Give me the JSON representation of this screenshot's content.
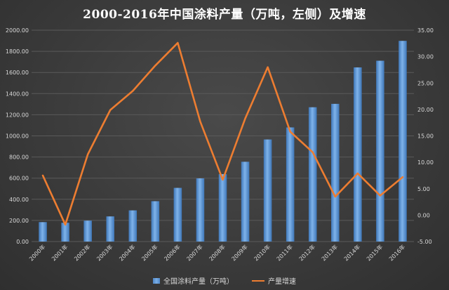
{
  "title": "2000-2016年中国涂料产量（万吨，左侧）及增速",
  "legend": {
    "bar_label": "全国涂料产量（万吨）",
    "line_label": "产量增速"
  },
  "colors": {
    "bar": "#5b9bd5",
    "line": "#ed7d31",
    "axis_text": "#d9d9d9",
    "grid": "#5a5a5a"
  },
  "chart_data": {
    "type": "bar+line",
    "categories": [
      "2000年",
      "2001年",
      "2002年",
      "2003年",
      "2004年",
      "2005年",
      "2006年",
      "2007年",
      "2008年",
      "2009年",
      "2010年",
      "2011年",
      "2012年",
      "2013年",
      "2014年",
      "2015年",
      "2016年"
    ],
    "series": [
      {
        "name": "全国涂料产量（万吨）",
        "type": "bar",
        "axis": "left",
        "values": [
          184,
          178,
          198,
          238,
          295,
          382,
          508,
          598,
          638,
          755,
          966,
          1080,
          1271,
          1303,
          1648,
          1711,
          1899
        ]
      },
      {
        "name": "产量增速",
        "type": "line",
        "axis": "right",
        "values": [
          7.5,
          -1.8,
          11.5,
          19.9,
          23.5,
          28.3,
          32.6,
          17.7,
          6.7,
          18.3,
          28.0,
          15.8,
          11.9,
          3.5,
          7.9,
          3.7,
          7.2
        ]
      }
    ],
    "y_left": {
      "min": 0,
      "max": 2000,
      "step": 200,
      "ticks": [
        "0.00",
        "200.00",
        "400.00",
        "600.00",
        "800.00",
        "1000.00",
        "1200.00",
        "1400.00",
        "1600.00",
        "1800.00",
        "2000.00"
      ]
    },
    "y_right": {
      "min": -5,
      "max": 35,
      "step": 5,
      "ticks": [
        "-5.00",
        "0.00",
        "5.00",
        "10.00",
        "15.00",
        "20.00",
        "25.00",
        "30.00",
        "35.00"
      ]
    },
    "grid": true,
    "legend_position": "bottom"
  }
}
